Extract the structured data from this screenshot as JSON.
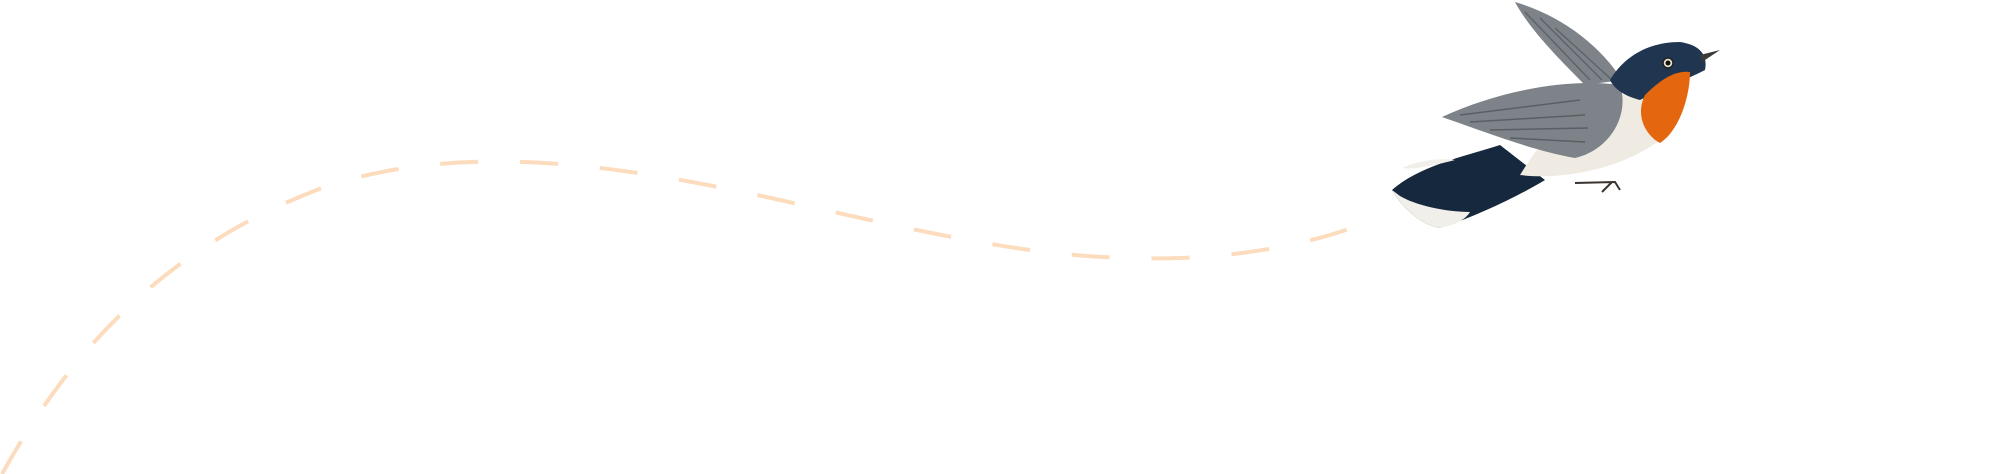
{
  "illustration": {
    "subject": "bird-in-flight",
    "colors": {
      "background": "#ffffff",
      "flight_path": "#fcdcbd",
      "bird_head": "#1f3550",
      "bird_throat": "#e4670f",
      "bird_belly": "#efebe2",
      "bird_wing": "#7d8388",
      "bird_tail": "#16283d"
    }
  }
}
